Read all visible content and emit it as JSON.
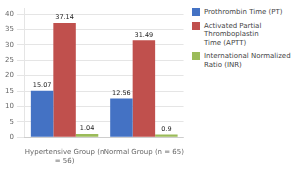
{
  "chart_data": {
    "type": "bar",
    "categories": [
      "Hypertensive Group (n\n= 56)",
      "Normal Group (n = 65)"
    ],
    "series": [
      {
        "name": "Prothrombin Time (PT)",
        "color": "#4472C4",
        "values": [
          15.07,
          12.56
        ]
      },
      {
        "name": "Activated Partial Thromboplastin\nTime (APTT)",
        "color": "#C0504D",
        "values": [
          37.14,
          31.49
        ]
      },
      {
        "name": "International Normalized Ratio (INR)",
        "color": "#9BBB59",
        "values": [
          1.04,
          0.9
        ]
      }
    ],
    "ylim": [
      0,
      42
    ],
    "yticks": [
      0,
      5,
      10,
      15,
      20,
      25,
      30,
      35,
      40
    ],
    "grid": true,
    "legend": "right",
    "data_labels": true
  }
}
